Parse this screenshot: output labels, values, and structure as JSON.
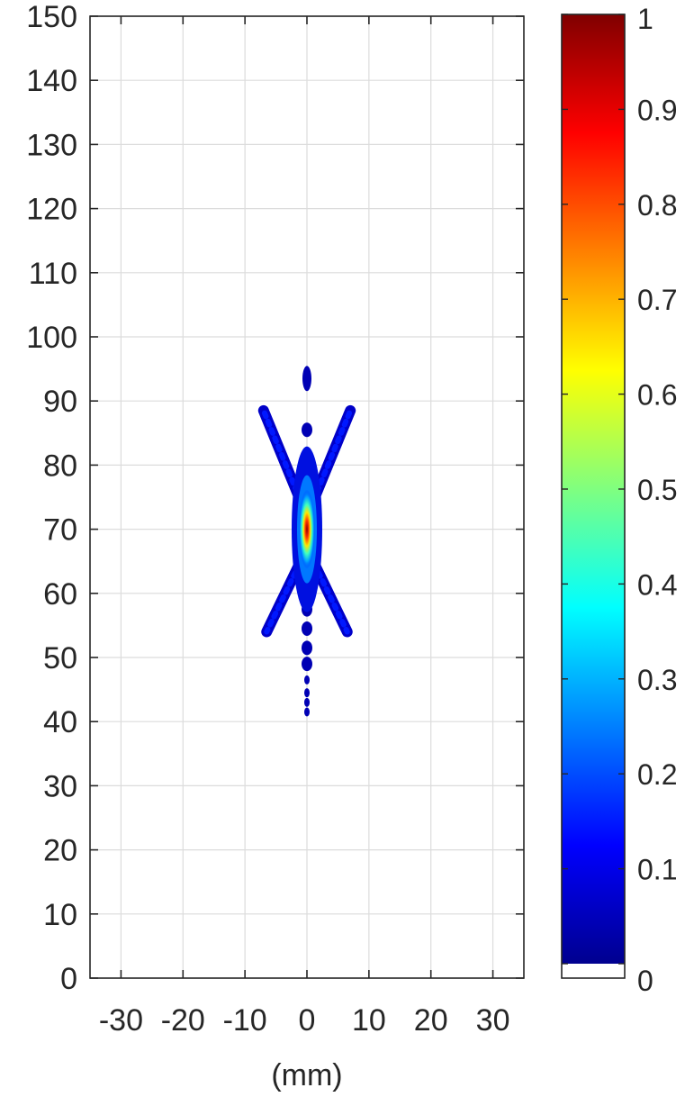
{
  "chart_data": {
    "type": "heatmap",
    "title": "",
    "xlabel": "(mm)",
    "ylabel": "",
    "xlim": [
      -35,
      35
    ],
    "ylim": [
      0,
      150
    ],
    "xticks": [
      -30,
      -20,
      -10,
      0,
      10,
      20,
      30
    ],
    "yticks": [
      0,
      10,
      20,
      30,
      40,
      50,
      60,
      70,
      80,
      90,
      100,
      110,
      120,
      130,
      140,
      150
    ],
    "grid": true,
    "colormap": "jet",
    "colorbar": {
      "range": [
        0,
        1
      ],
      "ticks": [
        0,
        0.1,
        0.2,
        0.3,
        0.4,
        0.5,
        0.6,
        0.7,
        0.8,
        0.9,
        1
      ],
      "zero_color": "#ffffff",
      "placement": "right"
    },
    "peak": {
      "x": 0,
      "y": 70,
      "value": 1.0
    },
    "features": {
      "upper_arms": [
        {
          "from": [
            0,
            72
          ],
          "to": [
            -7,
            88.5
          ]
        },
        {
          "from": [
            0,
            72
          ],
          "to": [
            7,
            88.5
          ]
        }
      ],
      "lower_arms": [
        {
          "from": [
            0,
            67
          ],
          "to": [
            -6.5,
            54
          ]
        },
        {
          "from": [
            0,
            67
          ],
          "to": [
            6.5,
            54
          ]
        }
      ],
      "axial_lobes": [
        {
          "x": 0,
          "y": 93.5
        },
        {
          "x": 0,
          "y": 85.5
        },
        {
          "x": 0,
          "y": 81.5
        },
        {
          "x": 0,
          "y": 57.5
        },
        {
          "x": 0,
          "y": 54.5
        },
        {
          "x": 0,
          "y": 51.5
        },
        {
          "x": 0,
          "y": 49
        },
        {
          "x": 0,
          "y": 46.5
        },
        {
          "x": 0,
          "y": 44.5
        },
        {
          "x": 0,
          "y": 43
        },
        {
          "x": 0,
          "y": 41.5
        }
      ]
    }
  }
}
